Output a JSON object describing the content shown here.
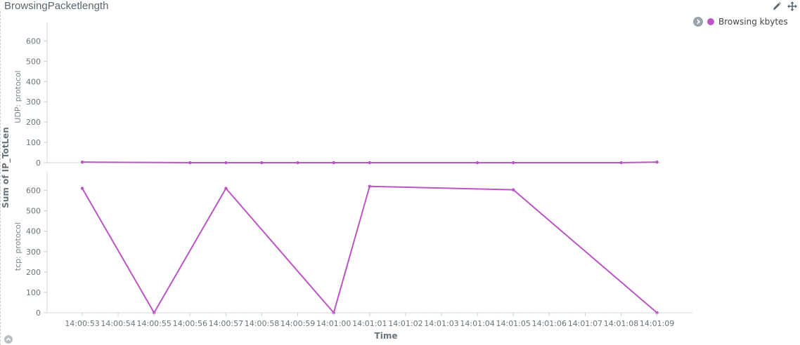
{
  "panel": {
    "title": "BrowsingPacketlength"
  },
  "toolbar": {
    "edit_icon": "pencil-icon",
    "move_icon": "move-arrows-icon"
  },
  "legend": {
    "toggle_icon": "chevron-right-circle-icon",
    "entries": [
      {
        "label": "Browsing kbytes",
        "color": "#bb54c5"
      }
    ]
  },
  "chart_data": {
    "type": "line",
    "ylabel": "Sum of IP_TotLen",
    "xlabel": "Time",
    "x": [
      "14:00:53",
      "14:00:54",
      "14:00:55",
      "14:00:56",
      "14:00:57",
      "14:00:58",
      "14:00:59",
      "14:01:00",
      "14:01:01",
      "14:01:02",
      "14:01:03",
      "14:01:04",
      "14:01:05",
      "14:01:06",
      "14:01:07",
      "14:01:08",
      "14:01:09"
    ],
    "color": "#bb54c5",
    "y_ticks": [
      0,
      100,
      200,
      300,
      400,
      500,
      600
    ],
    "ylim": [
      0,
      650
    ],
    "panels": [
      {
        "title": "UDP: protocol",
        "points": [
          {
            "x": "14:00:53",
            "y": 3
          },
          {
            "x": "14:00:56",
            "y": 0
          },
          {
            "x": "14:00:57",
            "y": 0
          },
          {
            "x": "14:00:58",
            "y": 0
          },
          {
            "x": "14:00:59",
            "y": 0
          },
          {
            "x": "14:01:00",
            "y": 0
          },
          {
            "x": "14:01:01",
            "y": 0
          },
          {
            "x": "14:01:04",
            "y": 0
          },
          {
            "x": "14:01:05",
            "y": 0
          },
          {
            "x": "14:01:08",
            "y": 0
          },
          {
            "x": "14:01:09",
            "y": 3
          }
        ]
      },
      {
        "title": "tcp: protocol",
        "points": [
          {
            "x": "14:00:53",
            "y": 610
          },
          {
            "x": "14:00:55",
            "y": 0
          },
          {
            "x": "14:00:57",
            "y": 610
          },
          {
            "x": "14:01:00",
            "y": 0
          },
          {
            "x": "14:01:01",
            "y": 620
          },
          {
            "x": "14:01:05",
            "y": 603
          },
          {
            "x": "14:01:09",
            "y": 0
          }
        ]
      }
    ],
    "grid": false,
    "legend_position": "top-right"
  }
}
